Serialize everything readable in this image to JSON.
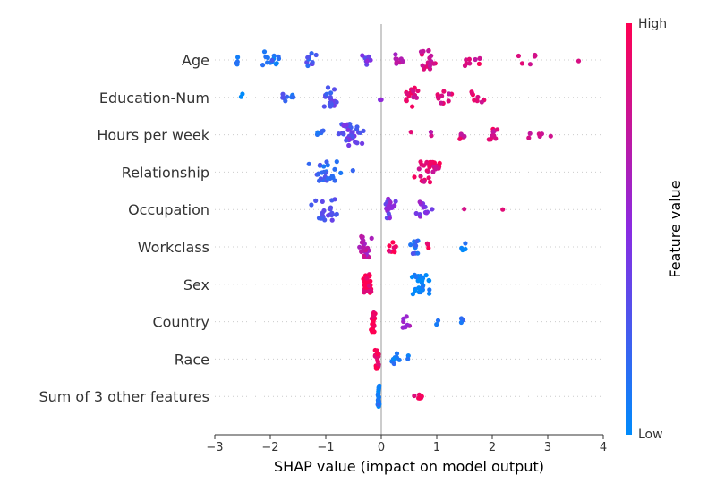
{
  "chart_data": {
    "type": "scatter",
    "variant": "beeswarm",
    "title": "",
    "xlabel": "SHAP value (impact on model output)",
    "ylabel": "",
    "xlim": [
      -3,
      4
    ],
    "xticks": [
      -3,
      -2,
      -1,
      0,
      1,
      2,
      3,
      4
    ],
    "xtick_labels": [
      "−3",
      "−2",
      "−1",
      "0",
      "1",
      "2",
      "3",
      "4"
    ],
    "grid": false,
    "colors": {
      "low": "#008bfb",
      "high": "#ff0052",
      "mid": "#8a2be2"
    },
    "colorbar": {
      "title": "Feature value",
      "high_label": "High",
      "low_label": "Low",
      "placement": "right"
    },
    "features": [
      {
        "name": "Age",
        "clusters": [
          {
            "x": -2.6,
            "spread": 0.05,
            "n": 4,
            "v": 0.05
          },
          {
            "x": -2.0,
            "spread": 0.35,
            "n": 14,
            "v": 0.15
          },
          {
            "x": -1.3,
            "spread": 0.25,
            "n": 10,
            "v": 0.25
          },
          {
            "x": -0.25,
            "spread": 0.12,
            "n": 8,
            "v": 0.4
          },
          {
            "x": 0.3,
            "spread": 0.2,
            "n": 8,
            "v": 0.7
          },
          {
            "x": 0.8,
            "spread": 0.35,
            "n": 18,
            "v": 0.8
          },
          {
            "x": 1.6,
            "spread": 0.25,
            "n": 8,
            "v": 0.85
          },
          {
            "x": 2.7,
            "spread": 0.35,
            "n": 6,
            "v": 0.9
          },
          {
            "x": 3.55,
            "spread": 0.05,
            "n": 1,
            "v": 0.9
          }
        ]
      },
      {
        "name": "Education-Num",
        "clusters": [
          {
            "x": -2.5,
            "spread": 0.1,
            "n": 2,
            "v": 0.05
          },
          {
            "x": -1.7,
            "spread": 0.25,
            "n": 8,
            "v": 0.2
          },
          {
            "x": -0.9,
            "spread": 0.25,
            "n": 18,
            "v": 0.3
          },
          {
            "x": 0.0,
            "spread": 0.04,
            "n": 2,
            "v": 0.5
          },
          {
            "x": 0.5,
            "spread": 0.2,
            "n": 18,
            "v": 0.85
          },
          {
            "x": 1.1,
            "spread": 0.25,
            "n": 10,
            "v": 0.85
          },
          {
            "x": 1.7,
            "spread": 0.2,
            "n": 8,
            "v": 0.9
          }
        ]
      },
      {
        "name": "Hours per week",
        "clusters": [
          {
            "x": -1.1,
            "spread": 0.15,
            "n": 6,
            "v": 0.2
          },
          {
            "x": -0.55,
            "spread": 0.3,
            "n": 38,
            "v": 0.35
          },
          {
            "x": 0.5,
            "spread": 0.05,
            "n": 1,
            "v": 0.8
          },
          {
            "x": 0.9,
            "spread": 0.05,
            "n": 2,
            "v": 0.8
          },
          {
            "x": 1.45,
            "spread": 0.15,
            "n": 6,
            "v": 0.85
          },
          {
            "x": 2.0,
            "spread": 0.2,
            "n": 10,
            "v": 0.85
          },
          {
            "x": 2.8,
            "spread": 0.2,
            "n": 5,
            "v": 0.85
          },
          {
            "x": 3.05,
            "spread": 0.03,
            "n": 1,
            "v": 0.85
          }
        ]
      },
      {
        "name": "Relationship",
        "clusters": [
          {
            "x": -1.0,
            "spread": 0.35,
            "n": 26,
            "v": 0.2
          },
          {
            "x": -0.5,
            "spread": 0.05,
            "n": 1,
            "v": 0.1
          },
          {
            "x": 0.85,
            "spread": 0.3,
            "n": 36,
            "v": 0.88
          }
        ]
      },
      {
        "name": "Occupation",
        "clusters": [
          {
            "x": -1.0,
            "spread": 0.3,
            "n": 22,
            "v": 0.3
          },
          {
            "x": 0.15,
            "spread": 0.2,
            "n": 24,
            "v": 0.45
          },
          {
            "x": 0.75,
            "spread": 0.25,
            "n": 12,
            "v": 0.5
          },
          {
            "x": 1.5,
            "spread": 0.05,
            "n": 1,
            "v": 0.85
          },
          {
            "x": 2.2,
            "spread": 0.03,
            "n": 1,
            "v": 0.9
          }
        ]
      },
      {
        "name": "Workclass",
        "clusters": [
          {
            "x": -0.3,
            "spread": 0.15,
            "n": 30,
            "v": 0.7
          },
          {
            "x": 0.2,
            "spread": 0.12,
            "n": 8,
            "v": 0.95
          },
          {
            "x": 0.6,
            "spread": 0.15,
            "n": 10,
            "v": 0.2
          },
          {
            "x": 0.85,
            "spread": 0.05,
            "n": 3,
            "v": 0.9
          },
          {
            "x": 1.5,
            "spread": 0.15,
            "n": 4,
            "v": 0.05
          }
        ]
      },
      {
        "name": "Sex",
        "clusters": [
          {
            "x": -0.25,
            "spread": 0.1,
            "n": 38,
            "v": 0.97
          },
          {
            "x": 0.7,
            "spread": 0.3,
            "n": 26,
            "v": 0.03
          }
        ]
      },
      {
        "name": "Country",
        "clusters": [
          {
            "x": -0.15,
            "spread": 0.06,
            "n": 28,
            "v": 0.97
          },
          {
            "x": 0.4,
            "spread": 0.15,
            "n": 8,
            "v": 0.6
          },
          {
            "x": 1.0,
            "spread": 0.05,
            "n": 2,
            "v": 0.1
          },
          {
            "x": 1.45,
            "spread": 0.05,
            "n": 3,
            "v": 0.1
          }
        ]
      },
      {
        "name": "Race",
        "clusters": [
          {
            "x": -0.08,
            "spread": 0.06,
            "n": 24,
            "v": 0.97
          },
          {
            "x": 0.25,
            "spread": 0.12,
            "n": 8,
            "v": 0.05
          },
          {
            "x": 0.48,
            "spread": 0.03,
            "n": 2,
            "v": 0.05
          }
        ]
      },
      {
        "name": "Sum of 3 other features",
        "clusters": [
          {
            "x": -0.05,
            "spread": 0.02,
            "n": 26,
            "v": 0.05
          },
          {
            "x": 0.65,
            "spread": 0.15,
            "n": 6,
            "v": 0.95
          }
        ]
      }
    ]
  }
}
